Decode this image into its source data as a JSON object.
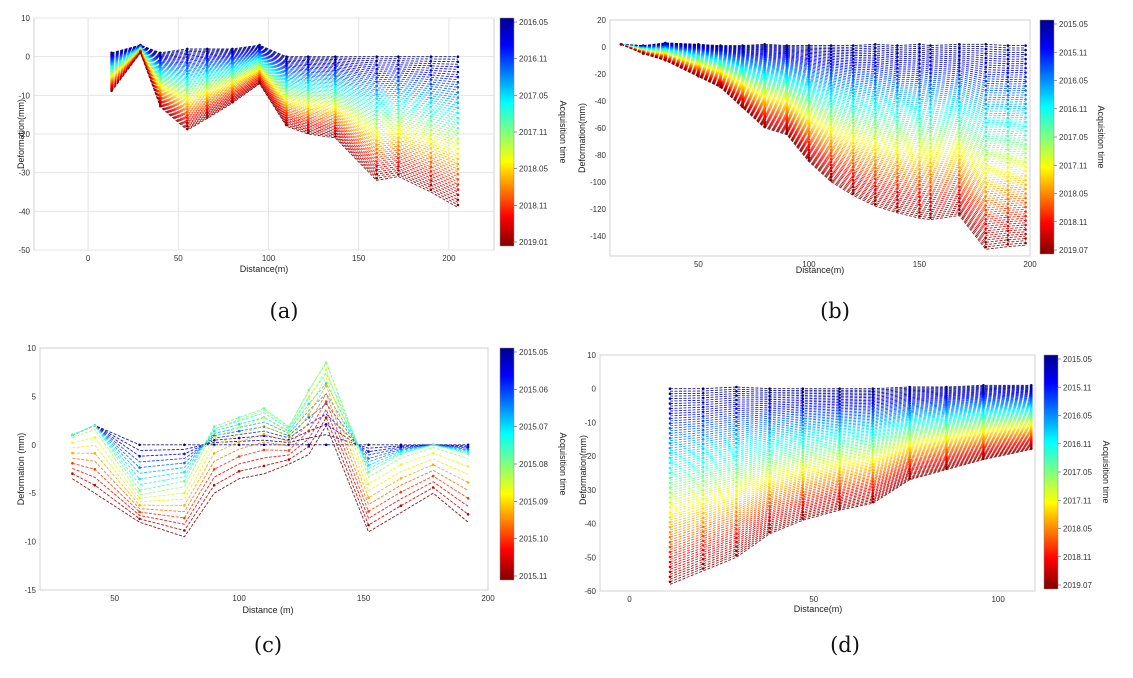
{
  "chart_data": [
    {
      "type": "line",
      "caption": "(a)",
      "xlabel": "Distance(m)",
      "ylabel": "Deformation(mm)",
      "xlim": [
        -30,
        225
      ],
      "ylim": [
        -50,
        10
      ],
      "xticks": [
        0,
        50,
        100,
        150,
        200
      ],
      "yticks": [
        10,
        0,
        -10,
        -20,
        -30,
        -40,
        -50
      ],
      "grid": true,
      "colorbar": {
        "label": "Acquisition time",
        "ticks": [
          "2016.05",
          "2016.11",
          "2017.05",
          "2017.11",
          "2018.05",
          "2018.11",
          "2019.01"
        ]
      },
      "series_count": 60,
      "x": [
        13,
        29,
        40,
        55,
        66,
        80,
        95,
        110,
        122,
        137,
        160,
        172,
        190,
        205
      ],
      "first_epoch": [
        1,
        3,
        1,
        2,
        2,
        2,
        3,
        0,
        0,
        0,
        0,
        0,
        0,
        0
      ],
      "last_epoch": [
        -9,
        1,
        -13,
        -19,
        -16,
        -12,
        -7,
        -18,
        -20,
        -21,
        -32,
        -31,
        -35,
        -39
      ]
    },
    {
      "type": "line",
      "caption": "(b)",
      "xlabel": "Distance(m)",
      "ylabel": "Deformation(mm)",
      "xlim": [
        10,
        200
      ],
      "ylim": [
        -155,
        20
      ],
      "xticks": [
        50,
        100,
        150,
        200
      ],
      "yticks": [
        20,
        0,
        -20,
        -40,
        -60,
        -80,
        -100,
        -120,
        -140
      ],
      "grid": false,
      "colorbar": {
        "label": "Acquisition time",
        "ticks": [
          "2015.05",
          "2015.11",
          "2016.05",
          "2016.11",
          "2017.05",
          "2017.11",
          "2018.05",
          "2018.11",
          "2019.07"
        ]
      },
      "series_count": 90,
      "x": [
        15,
        25,
        35,
        50,
        60,
        70,
        80,
        90,
        100,
        110,
        120,
        130,
        140,
        150,
        155,
        168,
        180,
        190,
        198
      ],
      "first_epoch": [
        2,
        1,
        3,
        2,
        1,
        1,
        2,
        1,
        1,
        1,
        1,
        2,
        1,
        2,
        1,
        2,
        2,
        1,
        1
      ],
      "last_epoch": [
        2,
        -5,
        -10,
        -22,
        -30,
        -45,
        -60,
        -65,
        -85,
        -100,
        -110,
        -118,
        -123,
        -127,
        -128,
        -125,
        -150,
        -148,
        -147
      ]
    },
    {
      "type": "line",
      "caption": "(c)",
      "xlabel": "Distance (m)",
      "ylabel": "Deformation (mm)",
      "xlim": [
        20,
        200
      ],
      "ylim": [
        -15,
        10
      ],
      "xticks": [
        50,
        100,
        150,
        200
      ],
      "yticks": [
        10,
        5,
        0,
        -5,
        -10,
        -15
      ],
      "grid": false,
      "colorbar": {
        "label": "Acquisition time",
        "ticks": [
          "2015.05",
          "2015.06",
          "2015.07",
          "2015.08",
          "2015.09",
          "2015.10",
          "2015.11"
        ]
      },
      "series_count": 18,
      "x": [
        33,
        42,
        60,
        78,
        90,
        100,
        110,
        120,
        128,
        135,
        152,
        165,
        178,
        192
      ],
      "first_epoch": [
        1,
        2,
        0,
        0,
        0,
        0,
        0,
        0,
        0,
        0,
        0,
        0,
        0,
        0
      ],
      "last_epoch": [
        -3.5,
        -5,
        -8,
        -9.5,
        -5,
        -3.5,
        -3,
        -2,
        -1,
        2,
        -9,
        -7,
        -5,
        -8
      ],
      "peak_epoch": [
        1,
        2,
        -5,
        -4,
        2,
        3,
        4,
        2,
        6,
        9,
        -3,
        -1,
        0,
        -1
      ]
    },
    {
      "type": "line",
      "caption": "(d)",
      "xlabel": "Distance(m)",
      "ylabel": "Deformation(mm)",
      "xlim": [
        -8,
        110
      ],
      "ylim": [
        -60,
        10
      ],
      "xticks": [
        0,
        50,
        100
      ],
      "yticks": [
        10,
        0,
        -10,
        -20,
        -30,
        -40,
        -50,
        -60
      ],
      "grid": false,
      "colorbar": {
        "label": "Acquisition time",
        "ticks": [
          "2015.05",
          "2015.11",
          "2016.05",
          "2016.11",
          "2017.05",
          "2017.11",
          "2018.05",
          "2018.11",
          "2019.07"
        ]
      },
      "series_count": 80,
      "x": [
        11,
        20,
        29,
        38,
        47,
        57,
        66,
        76,
        86,
        96,
        109
      ],
      "first_epoch": [
        0,
        0,
        0.5,
        0,
        0,
        0,
        0,
        0.5,
        0.5,
        1,
        1
      ],
      "last_epoch": [
        -58,
        -54,
        -50,
        -43,
        -39,
        -36,
        -34,
        -27,
        -24,
        -21,
        -18
      ]
    }
  ]
}
